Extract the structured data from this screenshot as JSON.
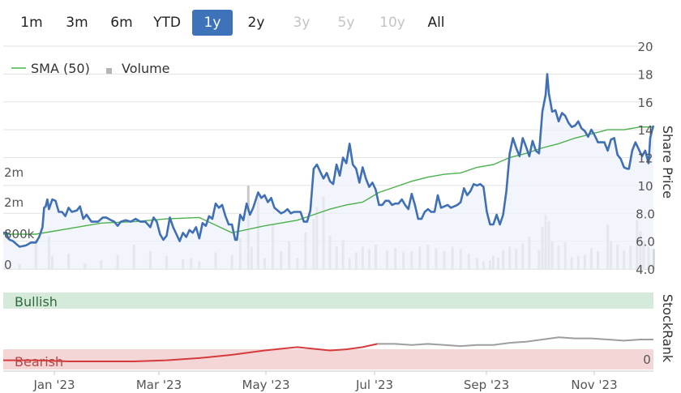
{
  "range_buttons": [
    {
      "label": "1m",
      "state": "normal"
    },
    {
      "label": "3m",
      "state": "normal"
    },
    {
      "label": "6m",
      "state": "normal"
    },
    {
      "label": "YTD",
      "state": "normal"
    },
    {
      "label": "1y",
      "state": "active"
    },
    {
      "label": "2y",
      "state": "normal"
    },
    {
      "label": "3y",
      "state": "disabled"
    },
    {
      "label": "5y",
      "state": "disabled"
    },
    {
      "label": "10y",
      "state": "disabled"
    },
    {
      "label": "All",
      "state": "normal"
    }
  ],
  "colors": {
    "price_line": "#3f6fb5",
    "price_fill": "#eef2fa",
    "sma_line": "#4bb04b",
    "volume_bar": "#c8c8c8",
    "bullish_band": "#d6eadb",
    "bearish_band": "#f4d6d7",
    "rank_bearish_line": "#d63b3b",
    "rank_neutral_line": "#9e9e9e",
    "active_button": "#3f73b9"
  },
  "chart_data": {
    "type": "line",
    "legend_position": "top-left",
    "legend": [
      {
        "label": "SMA (50)",
        "icon": "line-icon"
      },
      {
        "label": "Volume",
        "icon": "square-icon"
      }
    ],
    "x_ticks": [
      "Jan '23",
      "Mar '23",
      "May '23",
      "Jul '23",
      "Sep '23",
      "Nov '23"
    ],
    "price_axis": {
      "label": "Share Price",
      "ticks": [
        "4.0",
        "6.0",
        "8.0",
        "10",
        "12",
        "14",
        "16",
        "18",
        "20"
      ],
      "range": [
        4,
        20
      ]
    },
    "volume_axis": {
      "ticks": [
        "0",
        "800k",
        "2m",
        "2m"
      ]
    },
    "rank_axis": {
      "label": "StockRank",
      "tick": "0"
    },
    "rank_bands": {
      "bullish": "Bullish",
      "bearish": "Bearish"
    },
    "price": [
      [
        0,
        6.6
      ],
      [
        2,
        6.6
      ],
      [
        3,
        6.2
      ],
      [
        4,
        6.1
      ],
      [
        6,
        6.0
      ],
      [
        8,
        5.8
      ],
      [
        10,
        5.6
      ],
      [
        14,
        5.7
      ],
      [
        17,
        5.9
      ],
      [
        20,
        5.9
      ],
      [
        22,
        6.3
      ],
      [
        24,
        7.0
      ],
      [
        25,
        8.4
      ],
      [
        26,
        8.5
      ],
      [
        27,
        9.0
      ],
      [
        28,
        8.3
      ],
      [
        30,
        9.0
      ],
      [
        32,
        8.9
      ],
      [
        34,
        8.1
      ],
      [
        36,
        8.1
      ],
      [
        38,
        7.8
      ],
      [
        40,
        8.4
      ],
      [
        42,
        8.1
      ],
      [
        45,
        8.2
      ],
      [
        47,
        8.5
      ],
      [
        49,
        7.6
      ],
      [
        51,
        7.9
      ],
      [
        54,
        7.4
      ],
      [
        58,
        7.4
      ],
      [
        61,
        7.7
      ],
      [
        63,
        7.7
      ],
      [
        66,
        7.5
      ],
      [
        68,
        7.4
      ],
      [
        70,
        7.1
      ],
      [
        72,
        7.4
      ],
      [
        75,
        7.5
      ],
      [
        78,
        7.4
      ],
      [
        81,
        7.6
      ],
      [
        84,
        7.4
      ],
      [
        87,
        7.4
      ],
      [
        90,
        7.0
      ],
      [
        92,
        7.7
      ],
      [
        94,
        7.4
      ],
      [
        96,
        6.5
      ],
      [
        98,
        6.1
      ],
      [
        100,
        6.4
      ],
      [
        102,
        7.7
      ],
      [
        104,
        7.0
      ],
      [
        106,
        6.5
      ],
      [
        108,
        6.0
      ],
      [
        110,
        6.6
      ],
      [
        112,
        6.3
      ],
      [
        114,
        6.8
      ],
      [
        116,
        6.6
      ],
      [
        118,
        7.0
      ],
      [
        120,
        6.2
      ],
      [
        122,
        7.3
      ],
      [
        124,
        7.1
      ],
      [
        126,
        7.8
      ],
      [
        128,
        7.6
      ],
      [
        130,
        8.7
      ],
      [
        132,
        8.4
      ],
      [
        134,
        8.6
      ],
      [
        136,
        7.8
      ],
      [
        138,
        7.2
      ],
      [
        140,
        7.2
      ],
      [
        142,
        6.1
      ],
      [
        143,
        6.1
      ],
      [
        145,
        7.9
      ],
      [
        147,
        7.5
      ],
      [
        149,
        8.7
      ],
      [
        151,
        7.9
      ],
      [
        153,
        8.4
      ],
      [
        156,
        9.5
      ],
      [
        158,
        9.1
      ],
      [
        160,
        9.3
      ],
      [
        162,
        8.8
      ],
      [
        164,
        9.1
      ],
      [
        166,
        8.4
      ],
      [
        168,
        8.2
      ],
      [
        170,
        8.0
      ],
      [
        172,
        8.1
      ],
      [
        174,
        8.3
      ],
      [
        176,
        8.0
      ],
      [
        178,
        8.1
      ],
      [
        180,
        8.1
      ],
      [
        182,
        8.1
      ],
      [
        184,
        7.4
      ],
      [
        186,
        7.4
      ],
      [
        188,
        8.2
      ],
      [
        190,
        11.2
      ],
      [
        192,
        11.5
      ],
      [
        194,
        11.0
      ],
      [
        196,
        10.5
      ],
      [
        198,
        10.9
      ],
      [
        200,
        10.3
      ],
      [
        202,
        10.1
      ],
      [
        204,
        11.5
      ],
      [
        206,
        10.7
      ],
      [
        208,
        12.0
      ],
      [
        210,
        11.6
      ],
      [
        212,
        13.0
      ],
      [
        214,
        11.5
      ],
      [
        216,
        11.2
      ],
      [
        218,
        10.2
      ],
      [
        220,
        11.3
      ],
      [
        222,
        10.5
      ],
      [
        224,
        9.9
      ],
      [
        226,
        10.2
      ],
      [
        228,
        9.7
      ],
      [
        230,
        8.6
      ],
      [
        232,
        8.6
      ],
      [
        234,
        8.9
      ],
      [
        236,
        8.9
      ],
      [
        238,
        8.6
      ],
      [
        240,
        8.7
      ],
      [
        242,
        8.7
      ],
      [
        244,
        9.0
      ],
      [
        246,
        8.6
      ],
      [
        248,
        8.3
      ],
      [
        250,
        9.4
      ],
      [
        252,
        8.6
      ],
      [
        254,
        7.6
      ],
      [
        256,
        7.6
      ],
      [
        258,
        8.1
      ],
      [
        260,
        8.3
      ],
      [
        262,
        8.1
      ],
      [
        264,
        8.1
      ],
      [
        266,
        9.3
      ],
      [
        268,
        8.4
      ],
      [
        270,
        8.5
      ],
      [
        272,
        8.6
      ],
      [
        274,
        8.4
      ],
      [
        276,
        8.5
      ],
      [
        278,
        8.6
      ],
      [
        280,
        8.8
      ],
      [
        282,
        9.8
      ],
      [
        284,
        9.3
      ],
      [
        286,
        9.6
      ],
      [
        288,
        10.1
      ],
      [
        290,
        10.0
      ],
      [
        292,
        10.1
      ],
      [
        294,
        9.9
      ],
      [
        296,
        8.1
      ],
      [
        298,
        7.2
      ],
      [
        300,
        7.2
      ],
      [
        302,
        7.9
      ],
      [
        304,
        7.2
      ],
      [
        306,
        7.9
      ],
      [
        308,
        9.6
      ],
      [
        310,
        12.3
      ],
      [
        312,
        13.4
      ],
      [
        314,
        12.7
      ],
      [
        316,
        12.1
      ],
      [
        318,
        13.4
      ],
      [
        320,
        12.8
      ],
      [
        322,
        12.1
      ],
      [
        324,
        13.2
      ],
      [
        326,
        12.5
      ],
      [
        328,
        12.3
      ],
      [
        330,
        15.3
      ],
      [
        332,
        16.5
      ],
      [
        333,
        18.0
      ],
      [
        334,
        16.6
      ],
      [
        336,
        15.3
      ],
      [
        338,
        15.4
      ],
      [
        340,
        14.6
      ],
      [
        342,
        15.2
      ],
      [
        344,
        15.0
      ],
      [
        346,
        14.5
      ],
      [
        348,
        14.2
      ],
      [
        350,
        14.3
      ],
      [
        352,
        14.6
      ],
      [
        354,
        14.1
      ],
      [
        356,
        13.9
      ],
      [
        358,
        13.5
      ],
      [
        360,
        14.0
      ],
      [
        362,
        13.6
      ],
      [
        364,
        13.1
      ],
      [
        366,
        13.1
      ],
      [
        368,
        13.1
      ],
      [
        370,
        12.5
      ],
      [
        372,
        13.3
      ],
      [
        374,
        13.4
      ],
      [
        376,
        12.2
      ],
      [
        378,
        11.9
      ],
      [
        380,
        11.3
      ],
      [
        382,
        11.2
      ],
      [
        383,
        11.2
      ],
      [
        385,
        12.5
      ],
      [
        387,
        13.1
      ],
      [
        389,
        12.6
      ],
      [
        391,
        12.1
      ],
      [
        393,
        12.5
      ],
      [
        395,
        11.6
      ],
      [
        396,
        13.4
      ],
      [
        397,
        13.9
      ],
      [
        398,
        14.3
      ]
    ],
    "sma50": [
      [
        0,
        6.5
      ],
      [
        20,
        6.5
      ],
      [
        40,
        6.9
      ],
      [
        60,
        7.3
      ],
      [
        80,
        7.4
      ],
      [
        100,
        7.6
      ],
      [
        120,
        7.7
      ],
      [
        140,
        6.6
      ],
      [
        160,
        7.1
      ],
      [
        180,
        7.5
      ],
      [
        200,
        8.3
      ],
      [
        210,
        8.6
      ],
      [
        220,
        8.8
      ],
      [
        230,
        9.5
      ],
      [
        240,
        9.9
      ],
      [
        250,
        10.3
      ],
      [
        260,
        10.6
      ],
      [
        270,
        10.8
      ],
      [
        280,
        10.9
      ],
      [
        290,
        11.3
      ],
      [
        300,
        11.5
      ],
      [
        310,
        12.0
      ],
      [
        320,
        12.3
      ],
      [
        330,
        12.7
      ],
      [
        340,
        13.0
      ],
      [
        350,
        13.4
      ],
      [
        360,
        13.7
      ],
      [
        370,
        14.0
      ],
      [
        380,
        14.0
      ],
      [
        390,
        14.2
      ],
      [
        398,
        14.2
      ]
    ],
    "volume": [
      [
        10,
        4
      ],
      [
        20,
        26
      ],
      [
        28,
        29
      ],
      [
        30,
        12
      ],
      [
        40,
        14
      ],
      [
        50,
        5
      ],
      [
        60,
        8
      ],
      [
        70,
        13
      ],
      [
        80,
        22
      ],
      [
        90,
        16
      ],
      [
        100,
        12
      ],
      [
        110,
        9
      ],
      [
        115,
        10
      ],
      [
        120,
        7
      ],
      [
        130,
        15
      ],
      [
        140,
        13
      ],
      [
        145,
        28
      ],
      [
        150,
        75
      ],
      [
        152,
        20
      ],
      [
        156,
        67
      ],
      [
        160,
        10
      ],
      [
        165,
        40
      ],
      [
        170,
        16
      ],
      [
        175,
        25
      ],
      [
        180,
        10
      ],
      [
        185,
        33
      ],
      [
        190,
        45
      ],
      [
        192,
        56
      ],
      [
        196,
        65
      ],
      [
        200,
        30
      ],
      [
        204,
        20
      ],
      [
        208,
        26
      ],
      [
        212,
        10
      ],
      [
        216,
        15
      ],
      [
        220,
        20
      ],
      [
        224,
        18
      ],
      [
        228,
        22
      ],
      [
        235,
        17
      ],
      [
        240,
        19
      ],
      [
        245,
        15
      ],
      [
        250,
        16
      ],
      [
        255,
        20
      ],
      [
        260,
        22
      ],
      [
        265,
        19
      ],
      [
        270,
        16
      ],
      [
        275,
        20
      ],
      [
        280,
        18
      ],
      [
        285,
        14
      ],
      [
        290,
        10
      ],
      [
        294,
        7
      ],
      [
        298,
        8
      ],
      [
        300,
        12
      ],
      [
        303,
        10
      ],
      [
        306,
        17
      ],
      [
        310,
        20
      ],
      [
        314,
        18
      ],
      [
        318,
        23
      ],
      [
        322,
        29
      ],
      [
        328,
        17
      ],
      [
        330,
        38
      ],
      [
        332,
        49
      ],
      [
        334,
        43
      ],
      [
        336,
        25
      ],
      [
        340,
        21
      ],
      [
        344,
        24
      ],
      [
        348,
        11
      ],
      [
        352,
        12
      ],
      [
        356,
        13
      ],
      [
        360,
        19
      ],
      [
        364,
        16
      ],
      [
        370,
        40
      ],
      [
        372,
        25
      ],
      [
        376,
        22
      ],
      [
        380,
        17
      ],
      [
        384,
        21
      ],
      [
        388,
        44
      ],
      [
        390,
        34
      ],
      [
        392,
        25
      ],
      [
        395,
        20
      ],
      [
        398,
        18
      ]
    ],
    "stockrank_bearish": [
      [
        0,
        1
      ],
      [
        20,
        1
      ],
      [
        40,
        0
      ],
      [
        60,
        0
      ],
      [
        80,
        0
      ],
      [
        100,
        1
      ],
      [
        120,
        3
      ],
      [
        140,
        6
      ],
      [
        160,
        10
      ],
      [
        180,
        13
      ],
      [
        200,
        10
      ],
      [
        210,
        11
      ],
      [
        220,
        13
      ],
      [
        229,
        16
      ]
    ],
    "stockrank_neutral": [
      [
        229,
        16
      ],
      [
        240,
        16
      ],
      [
        250,
        15
      ],
      [
        260,
        16
      ],
      [
        270,
        15
      ],
      [
        280,
        14
      ],
      [
        290,
        15
      ],
      [
        300,
        15
      ],
      [
        310,
        17
      ],
      [
        320,
        18
      ],
      [
        330,
        20
      ],
      [
        340,
        22
      ],
      [
        350,
        21
      ],
      [
        360,
        21
      ],
      [
        370,
        20
      ],
      [
        380,
        19
      ],
      [
        390,
        20
      ],
      [
        398,
        20
      ]
    ]
  }
}
